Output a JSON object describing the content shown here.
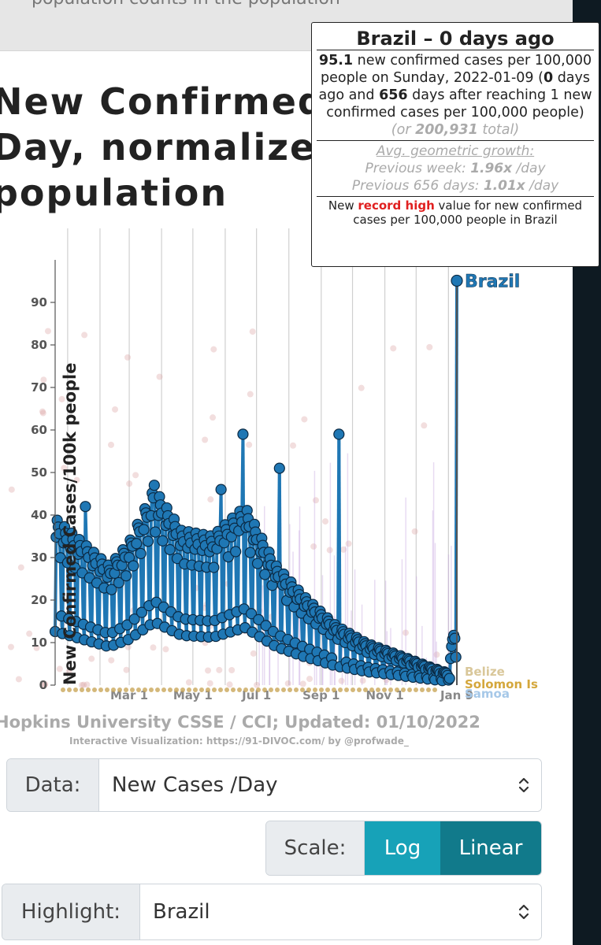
{
  "header": {
    "partial_text": "population counts in the population"
  },
  "title": "New Confirmed Cases per Day, normalized by population",
  "tooltip": {
    "title": "Brazil – 0 days ago",
    "value": "95.1",
    "line1_rest": " new confirmed cases per 100,000 people on Sunday, 2022-01-09 (",
    "days_ago": "0",
    "line1_mid": " days ago and ",
    "days_after": "656",
    "line1_end": " days after reaching 1 new confirmed cases per 100,000 people) ",
    "total_prefix": "(or ",
    "total": "200,931",
    "total_suffix": " total)",
    "growth_header": "Avg. geometric growth:",
    "growth_week_label": "Previous week: ",
    "growth_week_value": "1.96x",
    "growth_week_unit": " /day",
    "growth_all_label": "Previous 656 days: ",
    "growth_all_value": "1.01x",
    "growth_all_unit": " /day",
    "record_prefix": "New ",
    "record_highlight": "record high",
    "record_suffix": " value for new confirmed cases per 100,000 people in Brazil"
  },
  "credits": {
    "line": "Hopkins University CSSE / CCI; Updated: 01/10/2022",
    "sub": "Interactive Visualization: https://91-DIVOC.com/ by @profwade_"
  },
  "controls": {
    "data_label": "Data:",
    "data_value": "New Cases /Day",
    "scale_label": "Scale:",
    "scale_log": "Log",
    "scale_linear": "Linear",
    "scale_selected": "Linear",
    "highlight_label": "Highlight:",
    "highlight_value": "Brazil"
  },
  "colors": {
    "highlight": "#1f77b4",
    "background_series": "#d9a0a0",
    "tooltip_record": "#e02020",
    "scale_log_bg": "#17a2b8",
    "scale_linear_bg": "#117a8b"
  },
  "chart_data": {
    "type": "scatter",
    "title": "New Confirmed Cases per Day, normalized by population",
    "ylabel": "New Confirmed Cases/100k people",
    "yticks": [
      0,
      10,
      20,
      30,
      40,
      50,
      60,
      70,
      80,
      90
    ],
    "xticks": [
      "Mar 1",
      "May 1",
      "Jul 1",
      "Sep 1",
      "Nov 1",
      "Jan 9"
    ],
    "ylim": [
      0,
      100
    ],
    "highlighted_series": "Brazil",
    "other_series_labels": [
      "Belize",
      "Solomon Is",
      "Samoa"
    ],
    "latest_value": 95.1,
    "grid": true,
    "series": [
      {
        "name": "Brazil",
        "peaks": [
          {
            "date": "2021-01-18",
            "value": 42
          },
          {
            "date": "2021-03-25",
            "value": 47
          },
          {
            "date": "2021-05-28",
            "value": 46
          },
          {
            "date": "2021-06-18",
            "value": 59
          },
          {
            "date": "2021-07-23",
            "value": 51
          },
          {
            "date": "2021-09-18",
            "value": 59
          },
          {
            "date": "2022-01-09",
            "value": 95.1
          }
        ]
      }
    ]
  }
}
